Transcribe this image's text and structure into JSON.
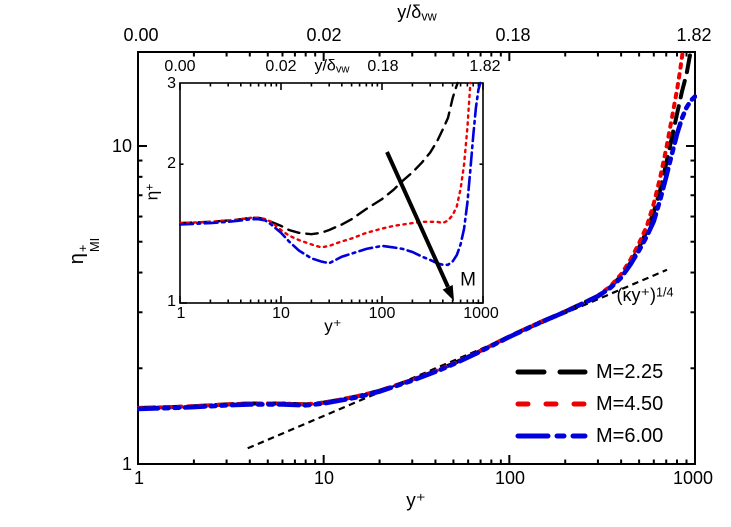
{
  "main_plot": {
    "xlabel": "y⁺",
    "ylabel": {
      "base": "η",
      "sup": "+",
      "sub": "MI"
    },
    "x_tick_labels": [
      "1",
      "10",
      "100",
      "1000"
    ],
    "y_tick_labels": [
      "1",
      "10"
    ],
    "top_axis_title": {
      "base": "y/δ",
      "sub": "vw"
    },
    "top_tick_labels": [
      "0.00",
      "0.02",
      "0.18",
      "1.82"
    ],
    "annotation": {
      "base": "(κy⁺)",
      "sup": "1/4"
    }
  },
  "inset_plot": {
    "xlabel": "y⁺",
    "ylabel": {
      "base": "η",
      "sup": "+"
    },
    "x_tick_labels": [
      "1",
      "10",
      "100",
      "1000"
    ],
    "y_tick_labels": [
      "1",
      "2",
      "3"
    ],
    "top_axis_title": {
      "base": "y/δ",
      "sub": "vw"
    },
    "top_tick_labels": [
      "0.00",
      "0.02",
      "0.18",
      "1.82"
    ],
    "arrow_label": "M"
  },
  "legend": {
    "items": [
      {
        "label": "M=2.25",
        "color": "#000000",
        "dash": "long-dash"
      },
      {
        "label": "M=4.50",
        "color": "#ee0000",
        "dash": "dot"
      },
      {
        "label": "M=6.00",
        "color": "#0000dd",
        "dash": "dash-dot-dot"
      }
    ]
  },
  "chart_data": [
    {
      "type": "line",
      "title": "",
      "xlabel": "y+",
      "ylabel": "eta+_MI",
      "x_scale": "log",
      "y_scale": "log",
      "xlim": [
        1,
        1000
      ],
      "ylim": [
        1,
        19.75
      ],
      "grid": false,
      "legend_position": "center-right",
      "secondary_x_axis": {
        "label": "y/delta_vw",
        "tick_labels": [
          "0.00",
          "0.02",
          "0.18",
          "1.82"
        ],
        "at_x": [
          1,
          10,
          100,
          1000
        ]
      },
      "reference_line": {
        "label": "(kappa y+)^(1/4)",
        "color": "#000000",
        "dash": "short-dash",
        "width": 2.2,
        "points": [
          [
            3.9,
            1.12
          ],
          [
            707,
            4.08
          ]
        ]
      },
      "series": [
        {
          "name": "M=2.25",
          "color": "#000000",
          "dash": "long-dash",
          "width": 4,
          "data": [
            [
              1,
              1.5
            ],
            [
              1.5,
              1.51
            ],
            [
              2,
              1.52
            ],
            [
              3,
              1.54
            ],
            [
              4,
              1.55
            ],
            [
              5,
              1.55
            ],
            [
              6,
              1.55
            ],
            [
              8,
              1.54
            ],
            [
              10,
              1.56
            ],
            [
              12,
              1.59
            ],
            [
              15,
              1.63
            ],
            [
              20,
              1.7
            ],
            [
              30,
              1.84
            ],
            [
              40,
              1.96
            ],
            [
              50,
              2.07
            ],
            [
              70,
              2.27
            ],
            [
              100,
              2.52
            ],
            [
              150,
              2.81
            ],
            [
              200,
              3.02
            ],
            [
              250,
              3.21
            ],
            [
              300,
              3.38
            ],
            [
              350,
              3.6
            ],
            [
              400,
              3.9
            ],
            [
              450,
              4.3
            ],
            [
              500,
              4.8
            ],
            [
              550,
              5.4
            ],
            [
              600,
              6.2
            ],
            [
              650,
              7.3
            ],
            [
              700,
              8.8
            ],
            [
              750,
              10.6
            ],
            [
              800,
              12.6
            ],
            [
              850,
              14.8
            ],
            [
              900,
              16.8
            ],
            [
              935,
              19.0
            ],
            [
              948,
              19.75
            ]
          ]
        },
        {
          "name": "M=4.50",
          "color": "#ee0000",
          "dash": "dot",
          "width": 4,
          "data": [
            [
              1,
              1.5
            ],
            [
              1.5,
              1.51
            ],
            [
              2,
              1.52
            ],
            [
              3,
              1.54
            ],
            [
              4,
              1.55
            ],
            [
              5,
              1.55
            ],
            [
              6,
              1.55
            ],
            [
              8,
              1.54
            ],
            [
              10,
              1.56
            ],
            [
              12,
              1.59
            ],
            [
              15,
              1.63
            ],
            [
              20,
              1.7
            ],
            [
              30,
              1.84
            ],
            [
              40,
              1.96
            ],
            [
              50,
              2.07
            ],
            [
              70,
              2.27
            ],
            [
              100,
              2.52
            ],
            [
              150,
              2.81
            ],
            [
              200,
              3.02
            ],
            [
              250,
              3.21
            ],
            [
              300,
              3.38
            ],
            [
              350,
              3.62
            ],
            [
              400,
              3.95
            ],
            [
              450,
              4.4
            ],
            [
              500,
              4.95
            ],
            [
              550,
              5.6
            ],
            [
              600,
              6.6
            ],
            [
              650,
              8.0
            ],
            [
              700,
              9.8
            ],
            [
              750,
              12.2
            ],
            [
              800,
              15.0
            ],
            [
              830,
              17.2
            ],
            [
              858,
              19.75
            ]
          ]
        },
        {
          "name": "M=6.00",
          "color": "#0000dd",
          "dash": "dash-dot-dot",
          "width": 4.6,
          "data": [
            [
              1,
              1.49
            ],
            [
              1.5,
              1.5
            ],
            [
              2,
              1.51
            ],
            [
              3,
              1.53
            ],
            [
              4,
              1.54
            ],
            [
              5,
              1.54
            ],
            [
              6,
              1.54
            ],
            [
              8,
              1.53
            ],
            [
              10,
              1.55
            ],
            [
              12,
              1.58
            ],
            [
              15,
              1.62
            ],
            [
              20,
              1.69
            ],
            [
              30,
              1.83
            ],
            [
              40,
              1.95
            ],
            [
              50,
              2.06
            ],
            [
              70,
              2.26
            ],
            [
              100,
              2.51
            ],
            [
              150,
              2.8
            ],
            [
              200,
              3.01
            ],
            [
              250,
              3.2
            ],
            [
              300,
              3.37
            ],
            [
              350,
              3.58
            ],
            [
              400,
              3.85
            ],
            [
              450,
              4.25
            ],
            [
              500,
              4.7
            ],
            [
              550,
              5.2
            ],
            [
              600,
              5.8
            ],
            [
              650,
              6.8
            ],
            [
              700,
              8.0
            ],
            [
              750,
              9.4
            ],
            [
              800,
              10.9
            ],
            [
              850,
              12.2
            ],
            [
              900,
              13.2
            ],
            [
              950,
              13.9
            ],
            [
              1000,
              14.3
            ]
          ]
        }
      ]
    },
    {
      "type": "line",
      "title": "inset",
      "xlabel": "y+",
      "ylabel": "eta+",
      "x_scale": "log",
      "y_scale": "log",
      "xlim": [
        1,
        1000
      ],
      "ylim": [
        1,
        3
      ],
      "grid": false,
      "annotation_arrow": {
        "label": "M",
        "meaning": "increasing Mach number"
      },
      "secondary_x_axis": {
        "label": "y/delta_vw",
        "tick_labels": [
          "0.00",
          "0.02",
          "0.18",
          "1.82"
        ],
        "at_x": [
          1,
          10,
          100,
          1000
        ]
      },
      "series": [
        {
          "name": "M=2.25",
          "color": "#000000",
          "dash": "long-dash",
          "width": 2.4,
          "data": [
            [
              1,
              1.49
            ],
            [
              2,
              1.5
            ],
            [
              3,
              1.51
            ],
            [
              4,
              1.52
            ],
            [
              5,
              1.53
            ],
            [
              6,
              1.53
            ],
            [
              7,
              1.52
            ],
            [
              8,
              1.5
            ],
            [
              10,
              1.47
            ],
            [
              12,
              1.44
            ],
            [
              15,
              1.42
            ],
            [
              20,
              1.41
            ],
            [
              25,
              1.42
            ],
            [
              30,
              1.44
            ],
            [
              40,
              1.48
            ],
            [
              50,
              1.52
            ],
            [
              70,
              1.6
            ],
            [
              100,
              1.68
            ],
            [
              130,
              1.76
            ],
            [
              160,
              1.84
            ],
            [
              200,
              1.92
            ],
            [
              250,
              2.02
            ],
            [
              300,
              2.12
            ],
            [
              350,
              2.24
            ],
            [
              400,
              2.38
            ],
            [
              450,
              2.52
            ],
            [
              500,
              2.78
            ],
            [
              530,
              2.9
            ],
            [
              560,
              3.0
            ]
          ]
        },
        {
          "name": "M=4.50",
          "color": "#ee0000",
          "dash": "dot",
          "width": 2.4,
          "data": [
            [
              1,
              1.49
            ],
            [
              2,
              1.5
            ],
            [
              3,
              1.51
            ],
            [
              4,
              1.52
            ],
            [
              5,
              1.53
            ],
            [
              6,
              1.53
            ],
            [
              7,
              1.52
            ],
            [
              8,
              1.5
            ],
            [
              10,
              1.44
            ],
            [
              12,
              1.4
            ],
            [
              15,
              1.37
            ],
            [
              20,
              1.34
            ],
            [
              25,
              1.32
            ],
            [
              30,
              1.33
            ],
            [
              40,
              1.36
            ],
            [
              50,
              1.38
            ],
            [
              70,
              1.42
            ],
            [
              100,
              1.45
            ],
            [
              130,
              1.47
            ],
            [
              160,
              1.48
            ],
            [
              200,
              1.49
            ],
            [
              250,
              1.5
            ],
            [
              300,
              1.5
            ],
            [
              350,
              1.5
            ],
            [
              400,
              1.49
            ],
            [
              450,
              1.51
            ],
            [
              500,
              1.55
            ],
            [
              550,
              1.62
            ],
            [
              600,
              1.77
            ],
            [
              650,
              2.0
            ],
            [
              700,
              2.4
            ],
            [
              730,
              2.75
            ],
            [
              750,
              3.0
            ]
          ]
        },
        {
          "name": "M=6.00",
          "color": "#0000dd",
          "dash": "dash-dot",
          "width": 2.6,
          "data": [
            [
              1,
              1.48
            ],
            [
              2,
              1.49
            ],
            [
              3,
              1.5
            ],
            [
              4,
              1.51
            ],
            [
              5,
              1.52
            ],
            [
              6,
              1.52
            ],
            [
              7,
              1.51
            ],
            [
              8,
              1.48
            ],
            [
              10,
              1.42
            ],
            [
              12,
              1.36
            ],
            [
              15,
              1.3
            ],
            [
              20,
              1.25
            ],
            [
              25,
              1.23
            ],
            [
              30,
              1.22
            ],
            [
              40,
              1.26
            ],
            [
              50,
              1.28
            ],
            [
              70,
              1.31
            ],
            [
              100,
              1.33
            ],
            [
              130,
              1.32
            ],
            [
              160,
              1.31
            ],
            [
              200,
              1.29
            ],
            [
              250,
              1.26
            ],
            [
              300,
              1.24
            ],
            [
              350,
              1.22
            ],
            [
              400,
              1.21
            ],
            [
              450,
              1.21
            ],
            [
              500,
              1.23
            ],
            [
              550,
              1.27
            ],
            [
              600,
              1.34
            ],
            [
              650,
              1.45
            ],
            [
              700,
              1.65
            ],
            [
              750,
              1.95
            ],
            [
              800,
              2.3
            ],
            [
              850,
              2.65
            ],
            [
              900,
              2.9
            ],
            [
              940,
              3.0
            ]
          ]
        }
      ]
    }
  ]
}
